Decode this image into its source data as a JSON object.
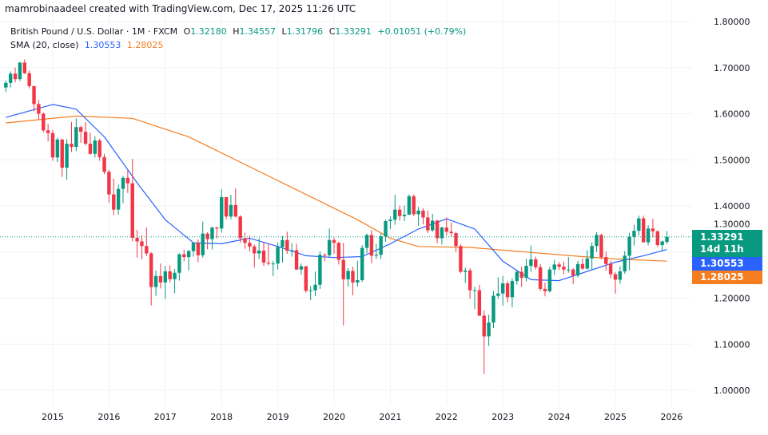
{
  "credit": "mamrobinaadeel created with TradingView.com, Dec 17, 2025 11:26 UTC",
  "legend": {
    "symbol": "British Pound / U.S. Dollar · 1M · FXCM",
    "o_label": "O",
    "o": "1.32180",
    "h_label": "H",
    "h": "1.34557",
    "l_label": "L",
    "l": "1.31796",
    "c_label": "C",
    "c": "1.33291",
    "change": "+0.01051 (+0.79%)",
    "sma_label": "SMA (20, close)",
    "sma_value_1": "1.30553",
    "sma_value_2": "1.28025"
  },
  "price_labels": {
    "last": "1.33291",
    "countdown": "14d 11h",
    "sma_1": "1.30553",
    "sma_2": "1.28025"
  },
  "colors": {
    "up": "#089981",
    "down": "#f23645",
    "sma_1": "#2962ff",
    "sma_2": "#f57c1f",
    "grid": "#f0f3fa"
  },
  "chart_data": {
    "type": "candlestick",
    "title": "British Pound / U.S. Dollar · 1M · FXCM",
    "interval": "1M",
    "first_bar": "2014-03",
    "ylim": [
      1.0,
      1.8
    ],
    "y_ticks": [
      "1.00000",
      "1.10000",
      "1.20000",
      "1.30000",
      "1.40000",
      "1.50000",
      "1.60000",
      "1.70000",
      "1.80000"
    ],
    "x_ticks": [
      "2015",
      "2016",
      "2017",
      "2018",
      "2019",
      "2020",
      "2021",
      "2022",
      "2023",
      "2024",
      "2025",
      "2026"
    ],
    "grid": true,
    "candles_ohlc": [
      [
        1.657,
        1.672,
        1.647,
        1.667
      ],
      [
        1.667,
        1.692,
        1.657,
        1.687
      ],
      [
        1.687,
        1.7,
        1.668,
        1.675
      ],
      [
        1.675,
        1.712,
        1.671,
        1.711
      ],
      [
        1.711,
        1.718,
        1.686,
        1.688
      ],
      [
        1.688,
        1.694,
        1.655,
        1.66
      ],
      [
        1.66,
        1.66,
        1.605,
        1.621
      ],
      [
        1.621,
        1.63,
        1.587,
        1.6
      ],
      [
        1.6,
        1.603,
        1.559,
        1.564
      ],
      [
        1.564,
        1.578,
        1.54,
        1.558
      ],
      [
        1.558,
        1.565,
        1.498,
        1.505
      ],
      [
        1.505,
        1.548,
        1.495,
        1.544
      ],
      [
        1.544,
        1.546,
        1.463,
        1.483
      ],
      [
        1.483,
        1.545,
        1.457,
        1.535
      ],
      [
        1.535,
        1.582,
        1.517,
        1.528
      ],
      [
        1.528,
        1.59,
        1.519,
        1.571
      ],
      [
        1.571,
        1.574,
        1.537,
        1.561
      ],
      [
        1.561,
        1.582,
        1.531,
        1.535
      ],
      [
        1.535,
        1.559,
        1.511,
        1.513
      ],
      [
        1.513,
        1.551,
        1.505,
        1.542
      ],
      [
        1.542,
        1.546,
        1.498,
        1.506
      ],
      [
        1.506,
        1.513,
        1.469,
        1.474
      ],
      [
        1.474,
        1.478,
        1.407,
        1.425
      ],
      [
        1.425,
        1.459,
        1.38,
        1.392
      ],
      [
        1.392,
        1.446,
        1.381,
        1.437
      ],
      [
        1.437,
        1.465,
        1.406,
        1.461
      ],
      [
        1.461,
        1.477,
        1.428,
        1.449
      ],
      [
        1.449,
        1.502,
        1.323,
        1.331
      ],
      [
        1.331,
        1.348,
        1.288,
        1.323
      ],
      [
        1.323,
        1.337,
        1.284,
        1.313
      ],
      [
        1.313,
        1.353,
        1.291,
        1.297
      ],
      [
        1.297,
        1.3,
        1.184,
        1.224
      ],
      [
        1.224,
        1.26,
        1.205,
        1.248
      ],
      [
        1.248,
        1.275,
        1.221,
        1.234
      ],
      [
        1.234,
        1.27,
        1.198,
        1.258
      ],
      [
        1.258,
        1.271,
        1.234,
        1.241
      ],
      [
        1.241,
        1.263,
        1.211,
        1.255
      ],
      [
        1.255,
        1.297,
        1.238,
        1.295
      ],
      [
        1.295,
        1.305,
        1.28,
        1.289
      ],
      [
        1.289,
        1.305,
        1.26,
        1.302
      ],
      [
        1.302,
        1.321,
        1.29,
        1.32
      ],
      [
        1.32,
        1.327,
        1.278,
        1.293
      ],
      [
        1.293,
        1.366,
        1.288,
        1.34
      ],
      [
        1.34,
        1.343,
        1.306,
        1.328
      ],
      [
        1.328,
        1.355,
        1.306,
        1.353
      ],
      [
        1.353,
        1.355,
        1.33,
        1.351
      ],
      [
        1.351,
        1.436,
        1.342,
        1.419
      ],
      [
        1.419,
        1.419,
        1.371,
        1.377
      ],
      [
        1.377,
        1.424,
        1.371,
        1.402
      ],
      [
        1.402,
        1.438,
        1.375,
        1.377
      ],
      [
        1.377,
        1.38,
        1.32,
        1.33
      ],
      [
        1.33,
        1.342,
        1.307,
        1.32
      ],
      [
        1.32,
        1.336,
        1.301,
        1.312
      ],
      [
        1.312,
        1.316,
        1.266,
        1.297
      ],
      [
        1.297,
        1.33,
        1.285,
        1.303
      ],
      [
        1.303,
        1.322,
        1.27,
        1.277
      ],
      [
        1.277,
        1.318,
        1.271,
        1.275
      ],
      [
        1.275,
        1.281,
        1.248,
        1.275
      ],
      [
        1.275,
        1.321,
        1.262,
        1.311
      ],
      [
        1.311,
        1.335,
        1.277,
        1.326
      ],
      [
        1.326,
        1.344,
        1.296,
        1.303
      ],
      [
        1.303,
        1.319,
        1.29,
        1.304
      ],
      [
        1.304,
        1.318,
        1.261,
        1.262
      ],
      [
        1.262,
        1.275,
        1.251,
        1.269
      ],
      [
        1.269,
        1.27,
        1.212,
        1.216
      ],
      [
        1.216,
        1.226,
        1.196,
        1.217
      ],
      [
        1.217,
        1.258,
        1.204,
        1.229
      ],
      [
        1.229,
        1.301,
        1.22,
        1.294
      ],
      [
        1.294,
        1.297,
        1.28,
        1.293
      ],
      [
        1.293,
        1.351,
        1.288,
        1.326
      ],
      [
        1.326,
        1.331,
        1.296,
        1.32
      ],
      [
        1.32,
        1.322,
        1.273,
        1.283
      ],
      [
        1.283,
        1.32,
        1.141,
        1.241
      ],
      [
        1.241,
        1.265,
        1.225,
        1.259
      ],
      [
        1.259,
        1.268,
        1.206,
        1.234
      ],
      [
        1.234,
        1.281,
        1.225,
        1.239
      ],
      [
        1.239,
        1.315,
        1.235,
        1.309
      ],
      [
        1.309,
        1.34,
        1.297,
        1.337
      ],
      [
        1.337,
        1.348,
        1.276,
        1.292
      ],
      [
        1.292,
        1.318,
        1.285,
        1.294
      ],
      [
        1.294,
        1.34,
        1.285,
        1.334
      ],
      [
        1.334,
        1.37,
        1.322,
        1.367
      ],
      [
        1.367,
        1.377,
        1.35,
        1.37
      ],
      [
        1.37,
        1.424,
        1.359,
        1.392
      ],
      [
        1.392,
        1.401,
        1.368,
        1.378
      ],
      [
        1.378,
        1.401,
        1.367,
        1.381
      ],
      [
        1.381,
        1.425,
        1.381,
        1.421
      ],
      [
        1.421,
        1.425,
        1.378,
        1.382
      ],
      [
        1.382,
        1.398,
        1.357,
        1.39
      ],
      [
        1.39,
        1.395,
        1.36,
        1.375
      ],
      [
        1.375,
        1.39,
        1.341,
        1.347
      ],
      [
        1.347,
        1.383,
        1.344,
        1.368
      ],
      [
        1.368,
        1.37,
        1.319,
        1.33
      ],
      [
        1.33,
        1.355,
        1.316,
        1.353
      ],
      [
        1.353,
        1.375,
        1.336,
        1.344
      ],
      [
        1.344,
        1.364,
        1.333,
        1.341
      ],
      [
        1.341,
        1.344,
        1.3,
        1.313
      ],
      [
        1.313,
        1.317,
        1.254,
        1.257
      ],
      [
        1.257,
        1.266,
        1.233,
        1.26
      ],
      [
        1.26,
        1.265,
        1.198,
        1.217
      ],
      [
        1.217,
        1.225,
        1.176,
        1.217
      ],
      [
        1.217,
        1.229,
        1.161,
        1.162
      ],
      [
        1.162,
        1.173,
        1.035,
        1.117
      ],
      [
        1.117,
        1.164,
        1.096,
        1.147
      ],
      [
        1.147,
        1.215,
        1.135,
        1.205
      ],
      [
        1.205,
        1.245,
        1.198,
        1.21
      ],
      [
        1.21,
        1.248,
        1.184,
        1.232
      ],
      [
        1.232,
        1.237,
        1.191,
        1.202
      ],
      [
        1.202,
        1.243,
        1.18,
        1.237
      ],
      [
        1.237,
        1.26,
        1.229,
        1.257
      ],
      [
        1.257,
        1.268,
        1.224,
        1.244
      ],
      [
        1.244,
        1.285,
        1.236,
        1.27
      ],
      [
        1.27,
        1.314,
        1.257,
        1.284
      ],
      [
        1.284,
        1.29,
        1.262,
        1.267
      ],
      [
        1.267,
        1.274,
        1.216,
        1.22
      ],
      [
        1.22,
        1.234,
        1.204,
        1.215
      ],
      [
        1.215,
        1.268,
        1.212,
        1.262
      ],
      [
        1.262,
        1.283,
        1.25,
        1.273
      ],
      [
        1.273,
        1.278,
        1.261,
        1.268
      ],
      [
        1.268,
        1.279,
        1.252,
        1.262
      ],
      [
        1.262,
        1.289,
        1.255,
        1.262
      ],
      [
        1.262,
        1.265,
        1.23,
        1.249
      ],
      [
        1.249,
        1.281,
        1.245,
        1.274
      ],
      [
        1.274,
        1.286,
        1.261,
        1.264
      ],
      [
        1.264,
        1.304,
        1.262,
        1.286
      ],
      [
        1.286,
        1.321,
        1.262,
        1.313
      ],
      [
        1.313,
        1.343,
        1.3,
        1.337
      ],
      [
        1.337,
        1.34,
        1.284,
        1.289
      ],
      [
        1.289,
        1.301,
        1.26,
        1.274
      ],
      [
        1.274,
        1.281,
        1.243,
        1.252
      ],
      [
        1.252,
        1.256,
        1.21,
        1.24
      ],
      [
        1.24,
        1.269,
        1.231,
        1.258
      ],
      [
        1.258,
        1.302,
        1.253,
        1.292
      ],
      [
        1.292,
        1.342,
        1.26,
        1.333
      ],
      [
        1.333,
        1.359,
        1.314,
        1.346
      ],
      [
        1.346,
        1.379,
        1.336,
        1.373
      ],
      [
        1.373,
        1.379,
        1.321,
        1.321
      ],
      [
        1.321,
        1.358,
        1.314,
        1.351
      ],
      [
        1.351,
        1.372,
        1.332,
        1.345
      ],
      [
        1.345,
        1.347,
        1.311,
        1.315
      ],
      [
        1.315,
        1.324,
        1.301,
        1.323
      ],
      [
        1.3218,
        1.34557,
        1.31796,
        1.33291
      ]
    ],
    "sma_1": {
      "dates": [
        "2014-03",
        "2015-01",
        "2015-06",
        "2015-12",
        "2016-07",
        "2017-01",
        "2017-07",
        "2018-01",
        "2018-07",
        "2019-01",
        "2019-07",
        "2020-01",
        "2020-07",
        "2021-01",
        "2021-07",
        "2022-01",
        "2022-07",
        "2023-01",
        "2023-07",
        "2024-01",
        "2024-07",
        "2025-01",
        "2025-07",
        "2025-12"
      ],
      "values": [
        1.592,
        1.62,
        1.61,
        1.55,
        1.45,
        1.37,
        1.32,
        1.318,
        1.33,
        1.312,
        1.292,
        1.288,
        1.29,
        1.318,
        1.35,
        1.372,
        1.35,
        1.28,
        1.24,
        1.238,
        1.258,
        1.278,
        1.292,
        1.30553
      ]
    },
    "sma_2": {
      "dates": [
        "2014-03",
        "2015-06",
        "2016-06",
        "2017-06",
        "2018-06",
        "2019-06",
        "2020-06",
        "2021-01",
        "2021-07",
        "2022-06",
        "2023-06",
        "2024-06",
        "2025-01",
        "2025-12"
      ],
      "values": [
        1.58,
        1.595,
        1.59,
        1.55,
        1.49,
        1.43,
        1.37,
        1.33,
        1.312,
        1.31,
        1.3,
        1.29,
        1.285,
        1.28025
      ]
    },
    "last_price": 1.33291
  }
}
